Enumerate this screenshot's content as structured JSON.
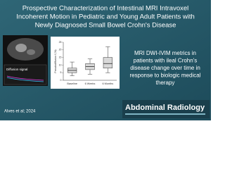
{
  "header": {
    "title_lines": [
      "Prospective Characterization of Intestinal MRI Intravoxel",
      "Incoherent Motion in Pediatric and Young Adult Patients with",
      "Newly Diagnosed Small Bowel Crohn's Disease"
    ]
  },
  "image": {
    "label": "Diffusion signal"
  },
  "boxplot": {
    "ylabel": "Pseudodiffusion f (%)",
    "categories": [
      "Baseline",
      "6 Weeks",
      "6 Months"
    ],
    "ylim": [
      0,
      25
    ],
    "yticks": [
      0,
      5,
      10,
      15,
      20,
      25
    ],
    "boxes": [
      {
        "min": 3,
        "q1": 5,
        "median": 6.5,
        "q3": 8,
        "max": 12
      },
      {
        "min": 4,
        "q1": 7,
        "median": 9,
        "q3": 11,
        "max": 14
      },
      {
        "min": 5,
        "q1": 8,
        "median": 11,
        "q3": 15,
        "max": 22
      }
    ]
  },
  "summary_lines": [
    "MRI DWI-IVIM metrics in",
    "patients with ileal Crohn's",
    "disease change over time in",
    "response to biologic medical",
    "therapy"
  ],
  "citation": "Alves et al; 2024",
  "journal": "Abdominal Radiology"
}
